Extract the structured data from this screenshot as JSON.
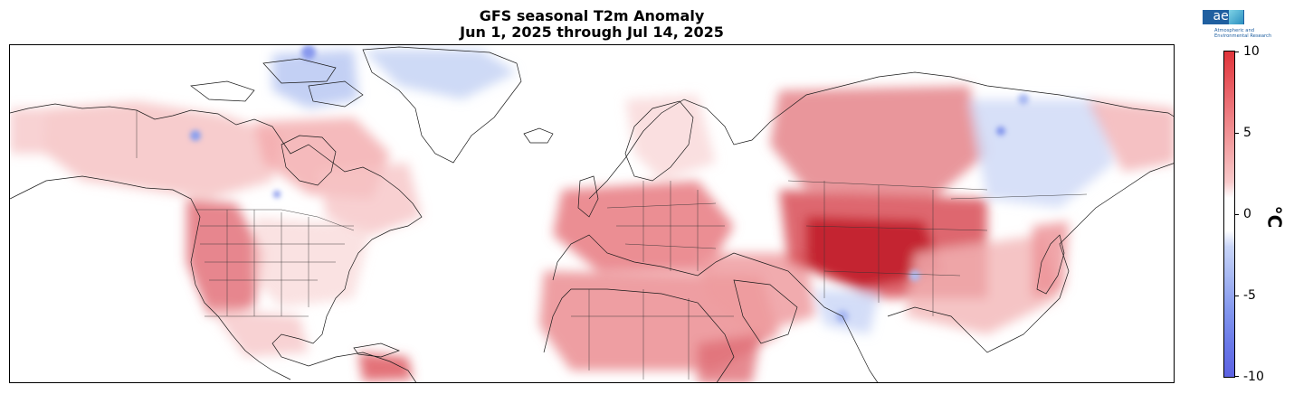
{
  "title": {
    "line1": "GFS seasonal T2m Anomaly",
    "line2": "Jun 1, 2025 through Jul 14, 2025"
  },
  "logo": {
    "name": "aer",
    "subtitle_line1": "Atmospheric and",
    "subtitle_line2": "Environmental Research"
  },
  "colorbar": {
    "unit": "°C",
    "ticks": [
      "10",
      "5",
      "0",
      "-5",
      "-10"
    ],
    "range": [
      -10,
      10
    ],
    "colors": {
      "max": "#e0343a",
      "warm": "#f3a3a5",
      "neutral": "#ffffff",
      "cool": "#a5b6f3",
      "min": "#5d62e2"
    }
  }
}
